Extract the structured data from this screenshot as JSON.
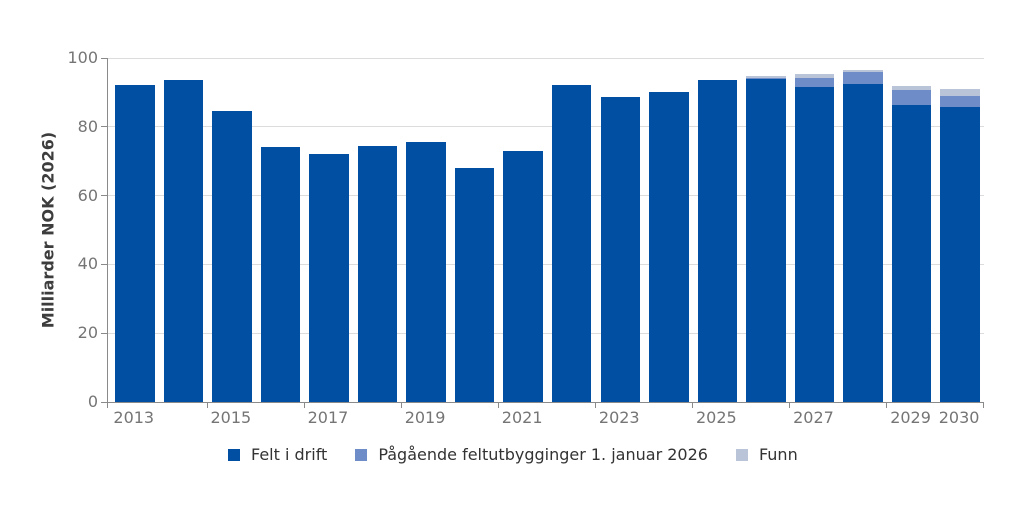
{
  "chart_data": {
    "type": "bar",
    "stacked": true,
    "title": "",
    "xlabel": "",
    "ylabel": "Milliarder NOK (2026)",
    "ylim": [
      0,
      100
    ],
    "y_ticks": [
      0,
      20,
      40,
      60,
      80,
      100
    ],
    "grid": "horizontal",
    "legend_position": "bottom",
    "categories": [
      "2013",
      "2014",
      "2015",
      "2016",
      "2017",
      "2018",
      "2019",
      "2020",
      "2021",
      "2022",
      "2023",
      "2024",
      "2025",
      "2026",
      "2027",
      "2028",
      "2029",
      "2030"
    ],
    "x_tick_labels": [
      "2013",
      "2015",
      "2017",
      "2019",
      "2021",
      "2023",
      "2025",
      "2027",
      "2029",
      "2030"
    ],
    "series": [
      {
        "name": "Felt i drift",
        "color": "#004fa3",
        "values": [
          92.3,
          93.7,
          84.5,
          74.0,
          72.0,
          74.5,
          75.7,
          68.0,
          73.0,
          92.3,
          88.6,
          90.0,
          93.5,
          93.9,
          91.7,
          92.4,
          86.4,
          85.8
        ]
      },
      {
        "name": "Pågående feltutbygginger 1. januar 2026",
        "color": "#6d8cc8",
        "values": [
          0,
          0,
          0,
          0,
          0,
          0,
          0,
          0,
          0,
          0,
          0,
          0,
          0,
          0.3,
          2.5,
          3.5,
          4.4,
          3.1
        ]
      },
      {
        "name": "Funn",
        "color": "#b9c4d9",
        "values": [
          0,
          0,
          0,
          0,
          0,
          0,
          0,
          0,
          0,
          0,
          0,
          0,
          0,
          0.5,
          1.3,
          0.6,
          1.2,
          2.1
        ]
      }
    ]
  }
}
